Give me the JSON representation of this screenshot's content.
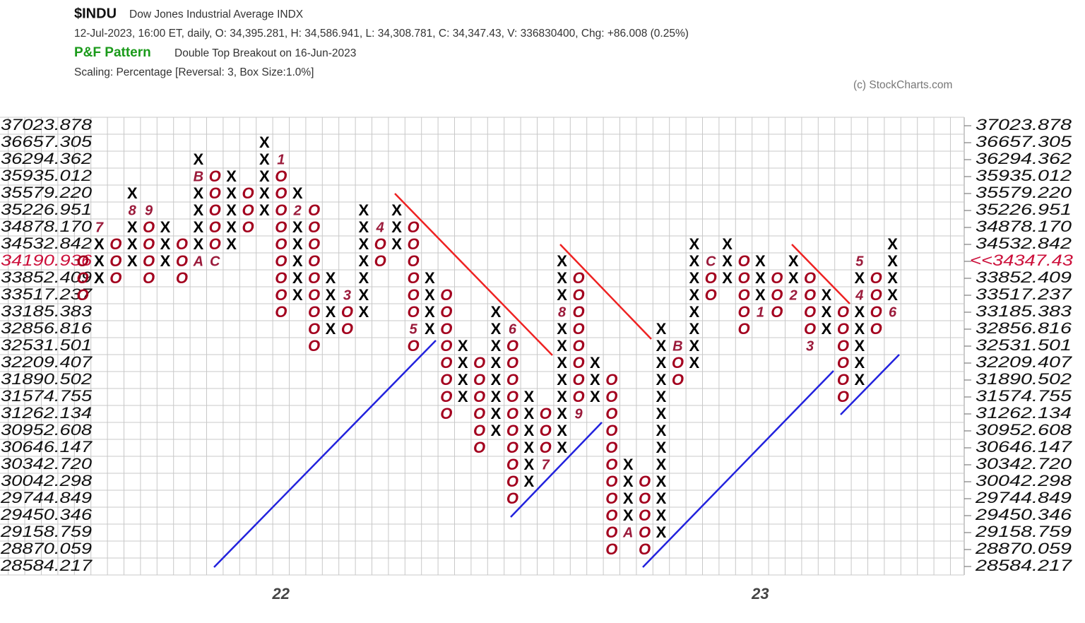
{
  "chart_data": {
    "type": "pnf",
    "title": "$INDU",
    "subtitle": "Dow Jones Industrial Average  INDX",
    "info": "12-Jul-2023, 16:00 ET, daily, O: 34,395.281, H: 34,586.941, L: 34,308.781, C: 34,347.43, V: 336830400, Chg: +86.008 (0.25%)",
    "pattern_label": "P&F Pattern",
    "pattern": "Double Top Breakout on 16-Jun-2023",
    "scaling": "Scaling: Percentage [Reversal: 3, Box Size:1.0%]",
    "credit": "(c) StockCharts.com",
    "log": true,
    "grid": true,
    "x_color": "#000000",
    "o_color": "#a3001e",
    "marker_color": "#9b1b3b",
    "highlight_color": "#cc0f3a",
    "pattern_color": "#1a9a1a",
    "last_price": {
      "value": 34347.43,
      "label": "<<34347.43"
    },
    "ylim": [
      28584.217,
      37023.878
    ],
    "yticks": [
      37023.878,
      36657.305,
      36294.362,
      35935.012,
      {
        "value": 35579.22,
        "label": "35579.220"
      },
      35226.951,
      {
        "value": 34878.17,
        "label": "34878.170"
      },
      34532.842,
      34190.936,
      33852.409,
      33517.237,
      33185.383,
      32856.816,
      32531.501,
      32209.407,
      31890.502,
      31574.755,
      31262.134,
      30952.608,
      30646.147,
      {
        "value": 30342.72,
        "label": "30342.720"
      },
      30042.298,
      29744.849,
      29450.346,
      29158.759,
      28870.059,
      28584.217
    ],
    "categories": [
      null,
      null,
      null,
      null,
      null,
      null,
      null,
      null,
      null,
      null,
      null,
      null,
      "22",
      null,
      null,
      null,
      null,
      null,
      null,
      null,
      null,
      null,
      null,
      null,
      null,
      null,
      null,
      null,
      null,
      null,
      null,
      null,
      null,
      null,
      null,
      null,
      null,
      null,
      null,
      null,
      null,
      "23",
      null,
      null,
      null,
      null,
      null,
      null,
      null,
      null
    ],
    "columns": [
      {
        "symbol": "O",
        "high": 34190.936,
        "low": 33517.237
      },
      {
        "symbol": "X",
        "high": 34878.17,
        "low": 33852.409,
        "markers": [
          {
            "value": 34878.17,
            "label": "7"
          }
        ]
      },
      {
        "symbol": "O",
        "high": 34532.842,
        "low": 33852.409
      },
      {
        "symbol": "X",
        "high": 35579.22,
        "low": 34190.936,
        "markers": [
          {
            "value": 35226.951,
            "label": "8"
          }
        ]
      },
      {
        "symbol": "O",
        "high": 35226.951,
        "low": 33852.409,
        "markers": [
          {
            "value": 35226.951,
            "label": "9"
          }
        ]
      },
      {
        "symbol": "X",
        "high": 34878.17,
        "low": 34190.936
      },
      {
        "symbol": "O",
        "high": 34532.842,
        "low": 33852.409
      },
      {
        "symbol": "X",
        "high": 36294.362,
        "low": 34190.936,
        "markers": [
          {
            "value": 34190.936,
            "label": "A"
          },
          {
            "value": 35935.012,
            "label": "B"
          }
        ]
      },
      {
        "symbol": "O",
        "high": 35935.012,
        "low": 34190.936,
        "markers": [
          {
            "value": 34190.936,
            "label": "C"
          }
        ]
      },
      {
        "symbol": "X",
        "high": 35935.012,
        "low": 34532.842
      },
      {
        "symbol": "O",
        "high": 35579.22,
        "low": 34878.17
      },
      {
        "symbol": "X",
        "high": 36657.305,
        "low": 35226.951
      },
      {
        "symbol": "O",
        "high": 36294.362,
        "low": 33185.383,
        "markers": [
          {
            "value": 36294.362,
            "label": "1"
          }
        ]
      },
      {
        "symbol": "X",
        "high": 35579.22,
        "low": 33517.237,
        "markers": [
          {
            "value": 35226.951,
            "label": "2"
          }
        ]
      },
      {
        "symbol": "O",
        "high": 35226.951,
        "low": 32531.501
      },
      {
        "symbol": "X",
        "high": 33852.409,
        "low": 32856.816
      },
      {
        "symbol": "O",
        "high": 33517.237,
        "low": 32856.816,
        "markers": [
          {
            "value": 33517.237,
            "label": "3"
          }
        ]
      },
      {
        "symbol": "X",
        "high": 35226.951,
        "low": 33185.383
      },
      {
        "symbol": "O",
        "high": 34878.17,
        "low": 34190.936,
        "markers": [
          {
            "value": 34878.17,
            "label": "4"
          }
        ]
      },
      {
        "symbol": "X",
        "high": 35226.951,
        "low": 34532.842
      },
      {
        "symbol": "O",
        "high": 34878.17,
        "low": 32531.501,
        "markers": [
          {
            "value": 32856.816,
            "label": "5"
          }
        ]
      },
      {
        "symbol": "X",
        "high": 33852.409,
        "low": 32856.816
      },
      {
        "symbol": "O",
        "high": 33517.237,
        "low": 31262.134
      },
      {
        "symbol": "X",
        "high": 32531.501,
        "low": 31574.755
      },
      {
        "symbol": "O",
        "high": 32209.407,
        "low": 30646.147
      },
      {
        "symbol": "X",
        "high": 33185.383,
        "low": 30952.608
      },
      {
        "symbol": "O",
        "high": 32856.816,
        "low": 29744.849,
        "markers": [
          {
            "value": 32856.816,
            "label": "6"
          }
        ]
      },
      {
        "symbol": "X",
        "high": 31574.755,
        "low": 30042.298
      },
      {
        "symbol": "O",
        "high": 31262.134,
        "low": 30342.72,
        "markers": [
          {
            "value": 30342.72,
            "label": "7"
          }
        ]
      },
      {
        "symbol": "X",
        "high": 34190.936,
        "low": 30646.147,
        "markers": [
          {
            "value": 33185.383,
            "label": "8"
          }
        ]
      },
      {
        "symbol": "O",
        "high": 33852.409,
        "low": 31262.134,
        "markers": [
          {
            "value": 31262.134,
            "label": "9"
          }
        ]
      },
      {
        "symbol": "X",
        "high": 32209.407,
        "low": 31574.755
      },
      {
        "symbol": "O",
        "high": 31890.502,
        "low": 28870.059
      },
      {
        "symbol": "X",
        "high": 30342.72,
        "low": 29158.759,
        "markers": [
          {
            "value": 29158.759,
            "label": "A"
          }
        ]
      },
      {
        "symbol": "O",
        "high": 30042.298,
        "low": 28870.059
      },
      {
        "symbol": "X",
        "high": 32856.816,
        "low": 29158.759
      },
      {
        "symbol": "O",
        "high": 32531.501,
        "low": 31890.502,
        "markers": [
          {
            "value": 32531.501,
            "label": "B"
          }
        ]
      },
      {
        "symbol": "X",
        "high": 34532.842,
        "low": 32209.407
      },
      {
        "symbol": "O",
        "high": 34190.936,
        "low": 33517.237,
        "markers": [
          {
            "value": 34190.936,
            "label": "C"
          }
        ]
      },
      {
        "symbol": "X",
        "high": 34532.842,
        "low": 33852.409
      },
      {
        "symbol": "O",
        "high": 34190.936,
        "low": 32856.816
      },
      {
        "symbol": "X",
        "high": 34190.936,
        "low": 33185.383,
        "markers": [
          {
            "value": 33185.383,
            "label": "1"
          }
        ]
      },
      {
        "symbol": "O",
        "high": 33852.409,
        "low": 33185.383
      },
      {
        "symbol": "X",
        "high": 34190.936,
        "low": 33517.237,
        "markers": [
          {
            "value": 33517.237,
            "label": "2"
          }
        ]
      },
      {
        "symbol": "O",
        "high": 33852.409,
        "low": 32531.501,
        "markers": [
          {
            "value": 32531.501,
            "label": "3"
          }
        ]
      },
      {
        "symbol": "X",
        "high": 33517.237,
        "low": 32856.816
      },
      {
        "symbol": "O",
        "high": 33185.383,
        "low": 31574.755
      },
      {
        "symbol": "X",
        "high": 34190.936,
        "low": 31890.502,
        "markers": [
          {
            "value": 33517.237,
            "label": "4"
          },
          {
            "value": 34190.936,
            "label": "5"
          }
        ]
      },
      {
        "symbol": "O",
        "high": 33852.409,
        "low": 32856.816
      },
      {
        "symbol": "X",
        "high": 34532.842,
        "low": 33185.383,
        "markers": [
          {
            "value": 33185.383,
            "label": "6"
          }
        ]
      }
    ]
  }
}
